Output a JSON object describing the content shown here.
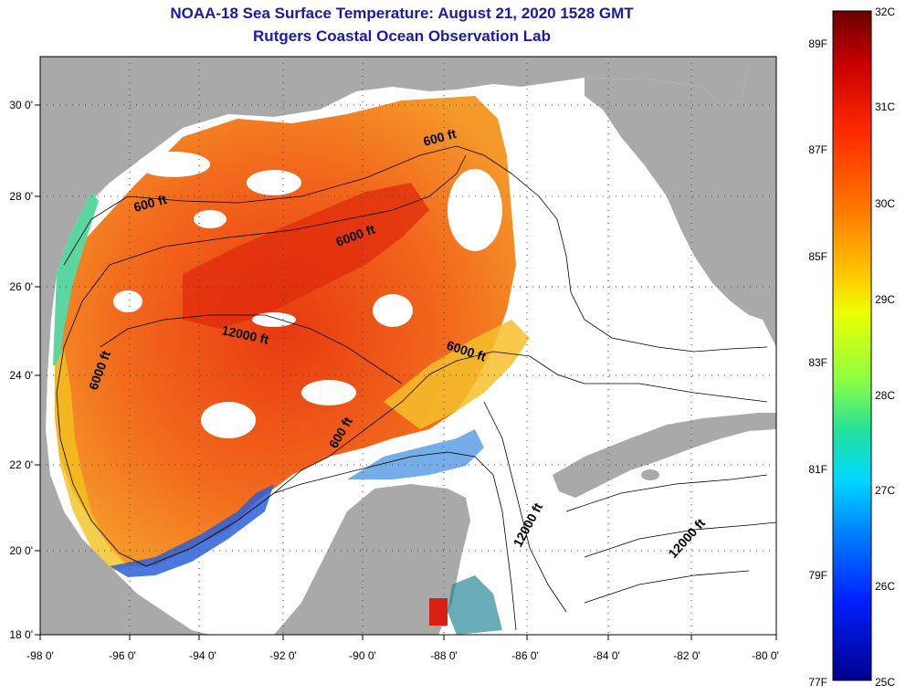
{
  "title": {
    "line1": "NOAA-18 Sea Surface Temperature:  August 21, 2020 1528 GMT",
    "line2": "Rutgers Coastal Ocean Observation Lab"
  },
  "map": {
    "land_color": "#a9a9a9",
    "water_color": "#ffffff",
    "lon_ticks": [
      "-98 0'",
      "-96 0'",
      "-94 0'",
      "-92 0'",
      "-90 0'",
      "-88 0'",
      "-86 0'",
      "-84 0'",
      "-82 0'",
      "-80 0'"
    ],
    "lat_ticks": [
      "30 0'",
      "28 0'",
      "26 0'",
      "24 0'",
      "22 0'",
      "20 0'",
      "18 0'"
    ],
    "contour_labels": [
      {
        "text": "600 ft",
        "id": "c600a"
      },
      {
        "text": "600 ft",
        "id": "c600b"
      },
      {
        "text": "600 ft",
        "id": "c600c"
      },
      {
        "text": "6000 ft",
        "id": "c6000a"
      },
      {
        "text": "6000 ft",
        "id": "c6000b"
      },
      {
        "text": "6000 ft",
        "id": "c6000c"
      },
      {
        "text": "12000 ft",
        "id": "c12000a"
      },
      {
        "text": "12000 ft",
        "id": "c12000b"
      },
      {
        "text": "12000 ft",
        "id": "c12000c"
      }
    ]
  },
  "colorbar": {
    "celsius": [
      "32C",
      "31C",
      "30C",
      "29C",
      "28C",
      "27C",
      "26C",
      "25C"
    ],
    "fahrenheit": [
      "89F",
      "87F",
      "85F",
      "83F",
      "81F",
      "79F",
      "77F"
    ],
    "gradient_colors": [
      "#6b0000",
      "#c80000",
      "#ff2a00",
      "#ff7a00",
      "#ffcc00",
      "#ecff00",
      "#8cff40",
      "#20e0a0",
      "#00d8ff",
      "#0080ff",
      "#0020ff",
      "#00008c"
    ]
  }
}
